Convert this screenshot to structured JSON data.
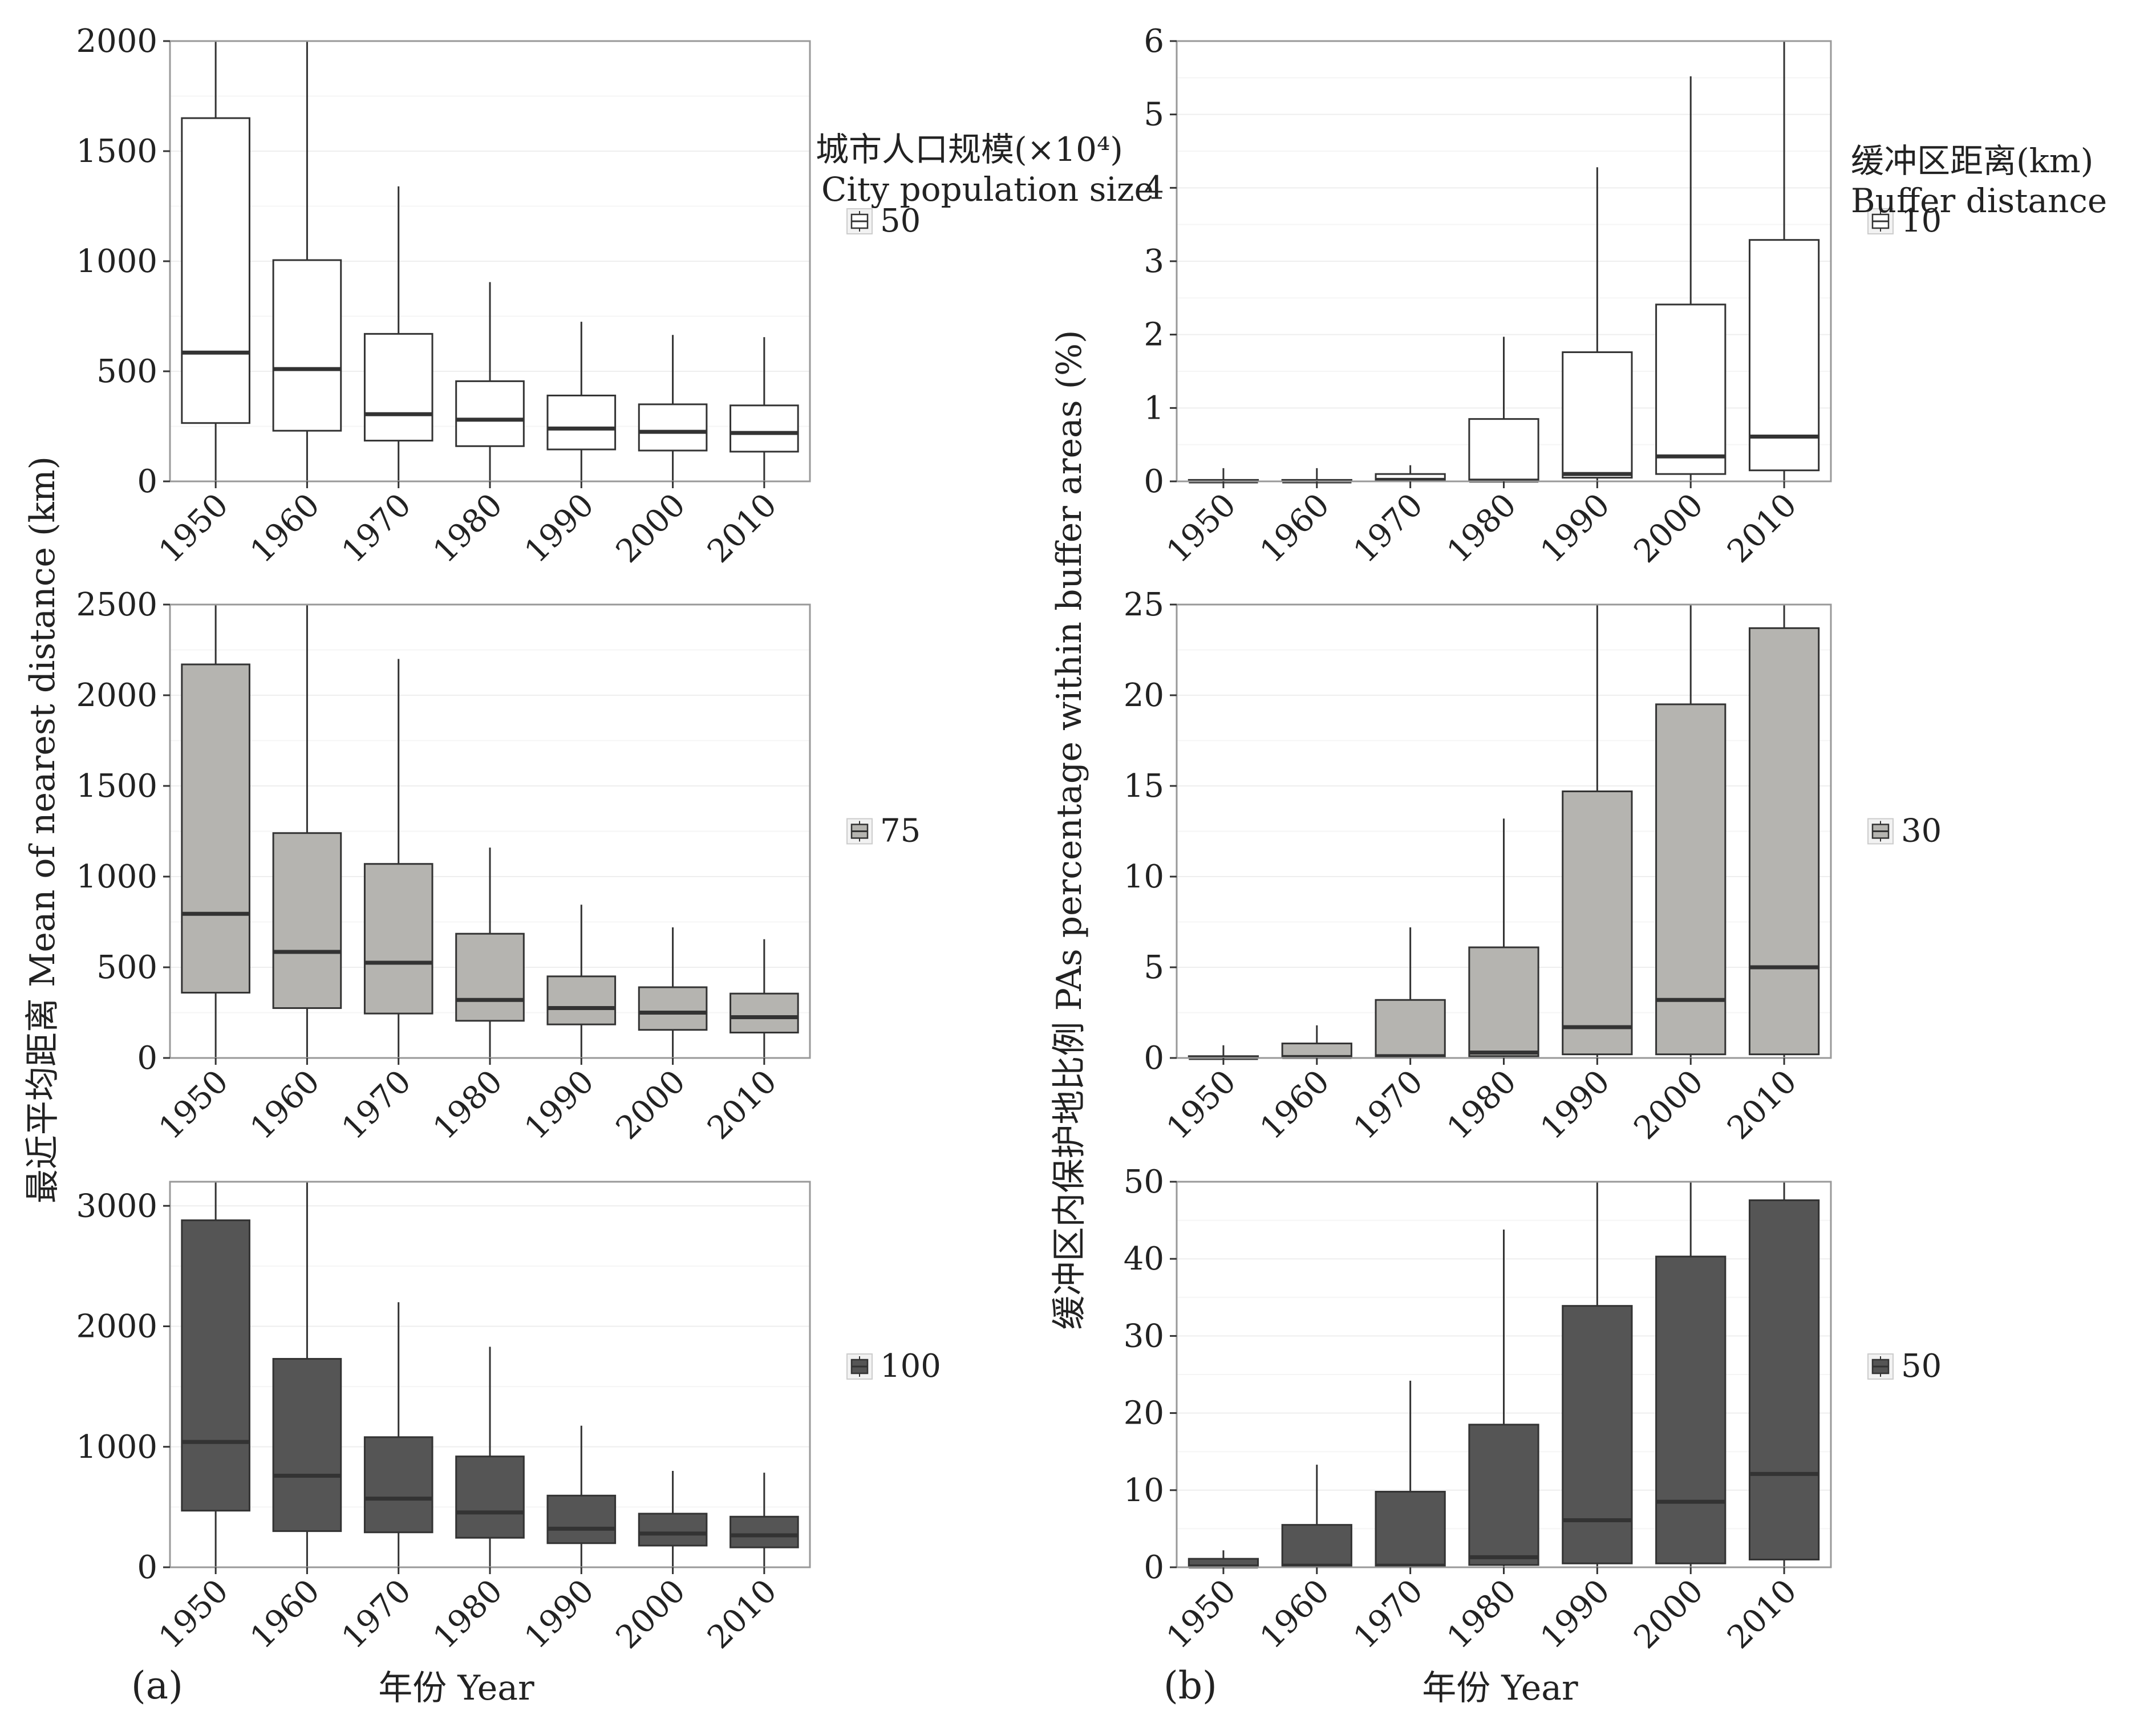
{
  "colors": {
    "fill_50": "#ffffff",
    "fill_75": "#b5b4b0",
    "fill_100": "#555555",
    "stroke": "#333333",
    "frame": "#999999",
    "grid": "#eeeeee"
  },
  "left": {
    "panel_label": "(a)",
    "ylabel": "最近平均距离 Mean of nearest distance (km)",
    "xlabel": "年份 Year",
    "legend_title_line1": "城市人口规模(×10⁴)",
    "legend_title_line2": "City population size"
  },
  "right": {
    "panel_label": "(b)",
    "ylabel": "缓冲区内保护地比例 PAs percentage within buffer areas (%)",
    "xlabel": "年份 Year",
    "legend_title_line1": "缓冲区距离(km)",
    "legend_title_line2": "Buffer distance"
  },
  "chart_data": [
    {
      "type": "boxplot",
      "panel": "a",
      "row": 1,
      "legend_label": "50",
      "fill": "#ffffff",
      "categories": [
        "1950",
        "1960",
        "1970",
        "1980",
        "1990",
        "2000",
        "2010"
      ],
      "ylim": [
        0,
        2000
      ],
      "yticks": [
        0,
        500,
        1000,
        1500,
        2000
      ],
      "boxes": [
        {
          "low": 0,
          "q1": 265,
          "median": 585,
          "q3": 1650,
          "high": 2000
        },
        {
          "low": 0,
          "q1": 230,
          "median": 510,
          "q3": 1005,
          "high": 2000
        },
        {
          "low": 0,
          "q1": 185,
          "median": 305,
          "q3": 670,
          "high": 1340
        },
        {
          "low": 0,
          "q1": 160,
          "median": 280,
          "q3": 455,
          "high": 905
        },
        {
          "low": 0,
          "q1": 145,
          "median": 240,
          "q3": 390,
          "high": 725
        },
        {
          "low": 0,
          "q1": 140,
          "median": 225,
          "q3": 350,
          "high": 665
        },
        {
          "low": 0,
          "q1": 135,
          "median": 220,
          "q3": 345,
          "high": 655
        }
      ]
    },
    {
      "type": "boxplot",
      "panel": "a",
      "row": 2,
      "legend_label": "75",
      "fill": "#b5b4b0",
      "categories": [
        "1950",
        "1960",
        "1970",
        "1980",
        "1990",
        "2000",
        "2010"
      ],
      "ylim": [
        0,
        2500
      ],
      "yticks": [
        0,
        500,
        1000,
        1500,
        2000,
        2500
      ],
      "boxes": [
        {
          "low": 0,
          "q1": 360,
          "median": 795,
          "q3": 2170,
          "high": 2500
        },
        {
          "low": 0,
          "q1": 275,
          "median": 585,
          "q3": 1240,
          "high": 2500
        },
        {
          "low": 0,
          "q1": 245,
          "median": 525,
          "q3": 1070,
          "high": 2200
        },
        {
          "low": 0,
          "q1": 205,
          "median": 320,
          "q3": 685,
          "high": 1160
        },
        {
          "low": 0,
          "q1": 185,
          "median": 275,
          "q3": 450,
          "high": 845
        },
        {
          "low": 0,
          "q1": 155,
          "median": 250,
          "q3": 390,
          "high": 720
        },
        {
          "low": 0,
          "q1": 140,
          "median": 225,
          "q3": 355,
          "high": 655
        }
      ]
    },
    {
      "type": "boxplot",
      "panel": "a",
      "row": 3,
      "legend_label": "100",
      "fill": "#555555",
      "categories": [
        "1950",
        "1960",
        "1970",
        "1980",
        "1990",
        "2000",
        "2010"
      ],
      "ylim": [
        0,
        3200
      ],
      "yticks": [
        0,
        1000,
        2000,
        3000
      ],
      "boxes": [
        {
          "low": 0,
          "q1": 470,
          "median": 1040,
          "q3": 2880,
          "high": 3200
        },
        {
          "low": 0,
          "q1": 300,
          "median": 760,
          "q3": 1730,
          "high": 3200
        },
        {
          "low": 0,
          "q1": 290,
          "median": 570,
          "q3": 1080,
          "high": 2200
        },
        {
          "low": 0,
          "q1": 245,
          "median": 455,
          "q3": 920,
          "high": 1830
        },
        {
          "low": 0,
          "q1": 200,
          "median": 320,
          "q3": 595,
          "high": 1175
        },
        {
          "low": 0,
          "q1": 180,
          "median": 280,
          "q3": 445,
          "high": 800
        },
        {
          "low": 0,
          "q1": 165,
          "median": 265,
          "q3": 420,
          "high": 785
        }
      ]
    },
    {
      "type": "boxplot",
      "panel": "b",
      "row": 1,
      "legend_label": "10",
      "fill": "#ffffff",
      "categories": [
        "1950",
        "1960",
        "1970",
        "1980",
        "1990",
        "2000",
        "2010"
      ],
      "ylim": [
        0,
        6
      ],
      "yticks": [
        0,
        1,
        2,
        3,
        4,
        5,
        6
      ],
      "boxes": [
        {
          "low": 0,
          "q1": 0,
          "median": 0,
          "q3": 0.02,
          "high": 0.18
        },
        {
          "low": 0,
          "q1": 0,
          "median": 0,
          "q3": 0.02,
          "high": 0.18
        },
        {
          "low": 0,
          "q1": 0,
          "median": 0.02,
          "q3": 0.1,
          "high": 0.22
        },
        {
          "low": 0,
          "q1": 0,
          "median": 0.01,
          "q3": 0.85,
          "high": 1.97
        },
        {
          "low": 0,
          "q1": 0.05,
          "median": 0.1,
          "q3": 1.76,
          "high": 4.28
        },
        {
          "low": 0,
          "q1": 0.1,
          "median": 0.34,
          "q3": 2.41,
          "high": 5.52
        },
        {
          "low": 0,
          "q1": 0.15,
          "median": 0.61,
          "q3": 3.29,
          "high": 6.0
        }
      ]
    },
    {
      "type": "boxplot",
      "panel": "b",
      "row": 2,
      "legend_label": "30",
      "fill": "#b5b4b0",
      "categories": [
        "1950",
        "1960",
        "1970",
        "1980",
        "1990",
        "2000",
        "2010"
      ],
      "ylim": [
        0,
        25
      ],
      "yticks": [
        0,
        5,
        10,
        15,
        20,
        25
      ],
      "boxes": [
        {
          "low": 0,
          "q1": 0,
          "median": 0,
          "q3": 0.1,
          "high": 0.7
        },
        {
          "low": 0,
          "q1": 0,
          "median": 0.05,
          "q3": 0.8,
          "high": 1.8
        },
        {
          "low": 0,
          "q1": 0,
          "median": 0.1,
          "q3": 3.2,
          "high": 7.2
        },
        {
          "low": 0,
          "q1": 0.1,
          "median": 0.3,
          "q3": 6.1,
          "high": 13.2
        },
        {
          "low": 0,
          "q1": 0.2,
          "median": 1.7,
          "q3": 14.7,
          "high": 25
        },
        {
          "low": 0,
          "q1": 0.2,
          "median": 3.2,
          "q3": 19.5,
          "high": 25
        },
        {
          "low": 0,
          "q1": 0.2,
          "median": 5.0,
          "q3": 23.7,
          "high": 25
        }
      ]
    },
    {
      "type": "boxplot",
      "panel": "b",
      "row": 3,
      "legend_label": "50",
      "fill": "#555555",
      "categories": [
        "1950",
        "1960",
        "1970",
        "1980",
        "1990",
        "2000",
        "2010"
      ],
      "ylim": [
        0,
        50
      ],
      "yticks": [
        0,
        10,
        20,
        30,
        40,
        50
      ],
      "boxes": [
        {
          "low": 0,
          "q1": 0,
          "median": 0.1,
          "q3": 1.1,
          "high": 2.2
        },
        {
          "low": 0,
          "q1": 0,
          "median": 0.2,
          "q3": 5.5,
          "high": 13.3
        },
        {
          "low": 0,
          "q1": 0,
          "median": 0.2,
          "q3": 9.8,
          "high": 24.2
        },
        {
          "low": 0,
          "q1": 0.3,
          "median": 1.3,
          "q3": 18.5,
          "high": 43.8
        },
        {
          "low": 0,
          "q1": 0.5,
          "median": 6.1,
          "q3": 33.9,
          "high": 50
        },
        {
          "low": 0,
          "q1": 0.5,
          "median": 8.5,
          "q3": 40.3,
          "high": 50
        },
        {
          "low": 0,
          "q1": 1.0,
          "median": 12.1,
          "q3": 47.6,
          "high": 50
        }
      ]
    }
  ]
}
